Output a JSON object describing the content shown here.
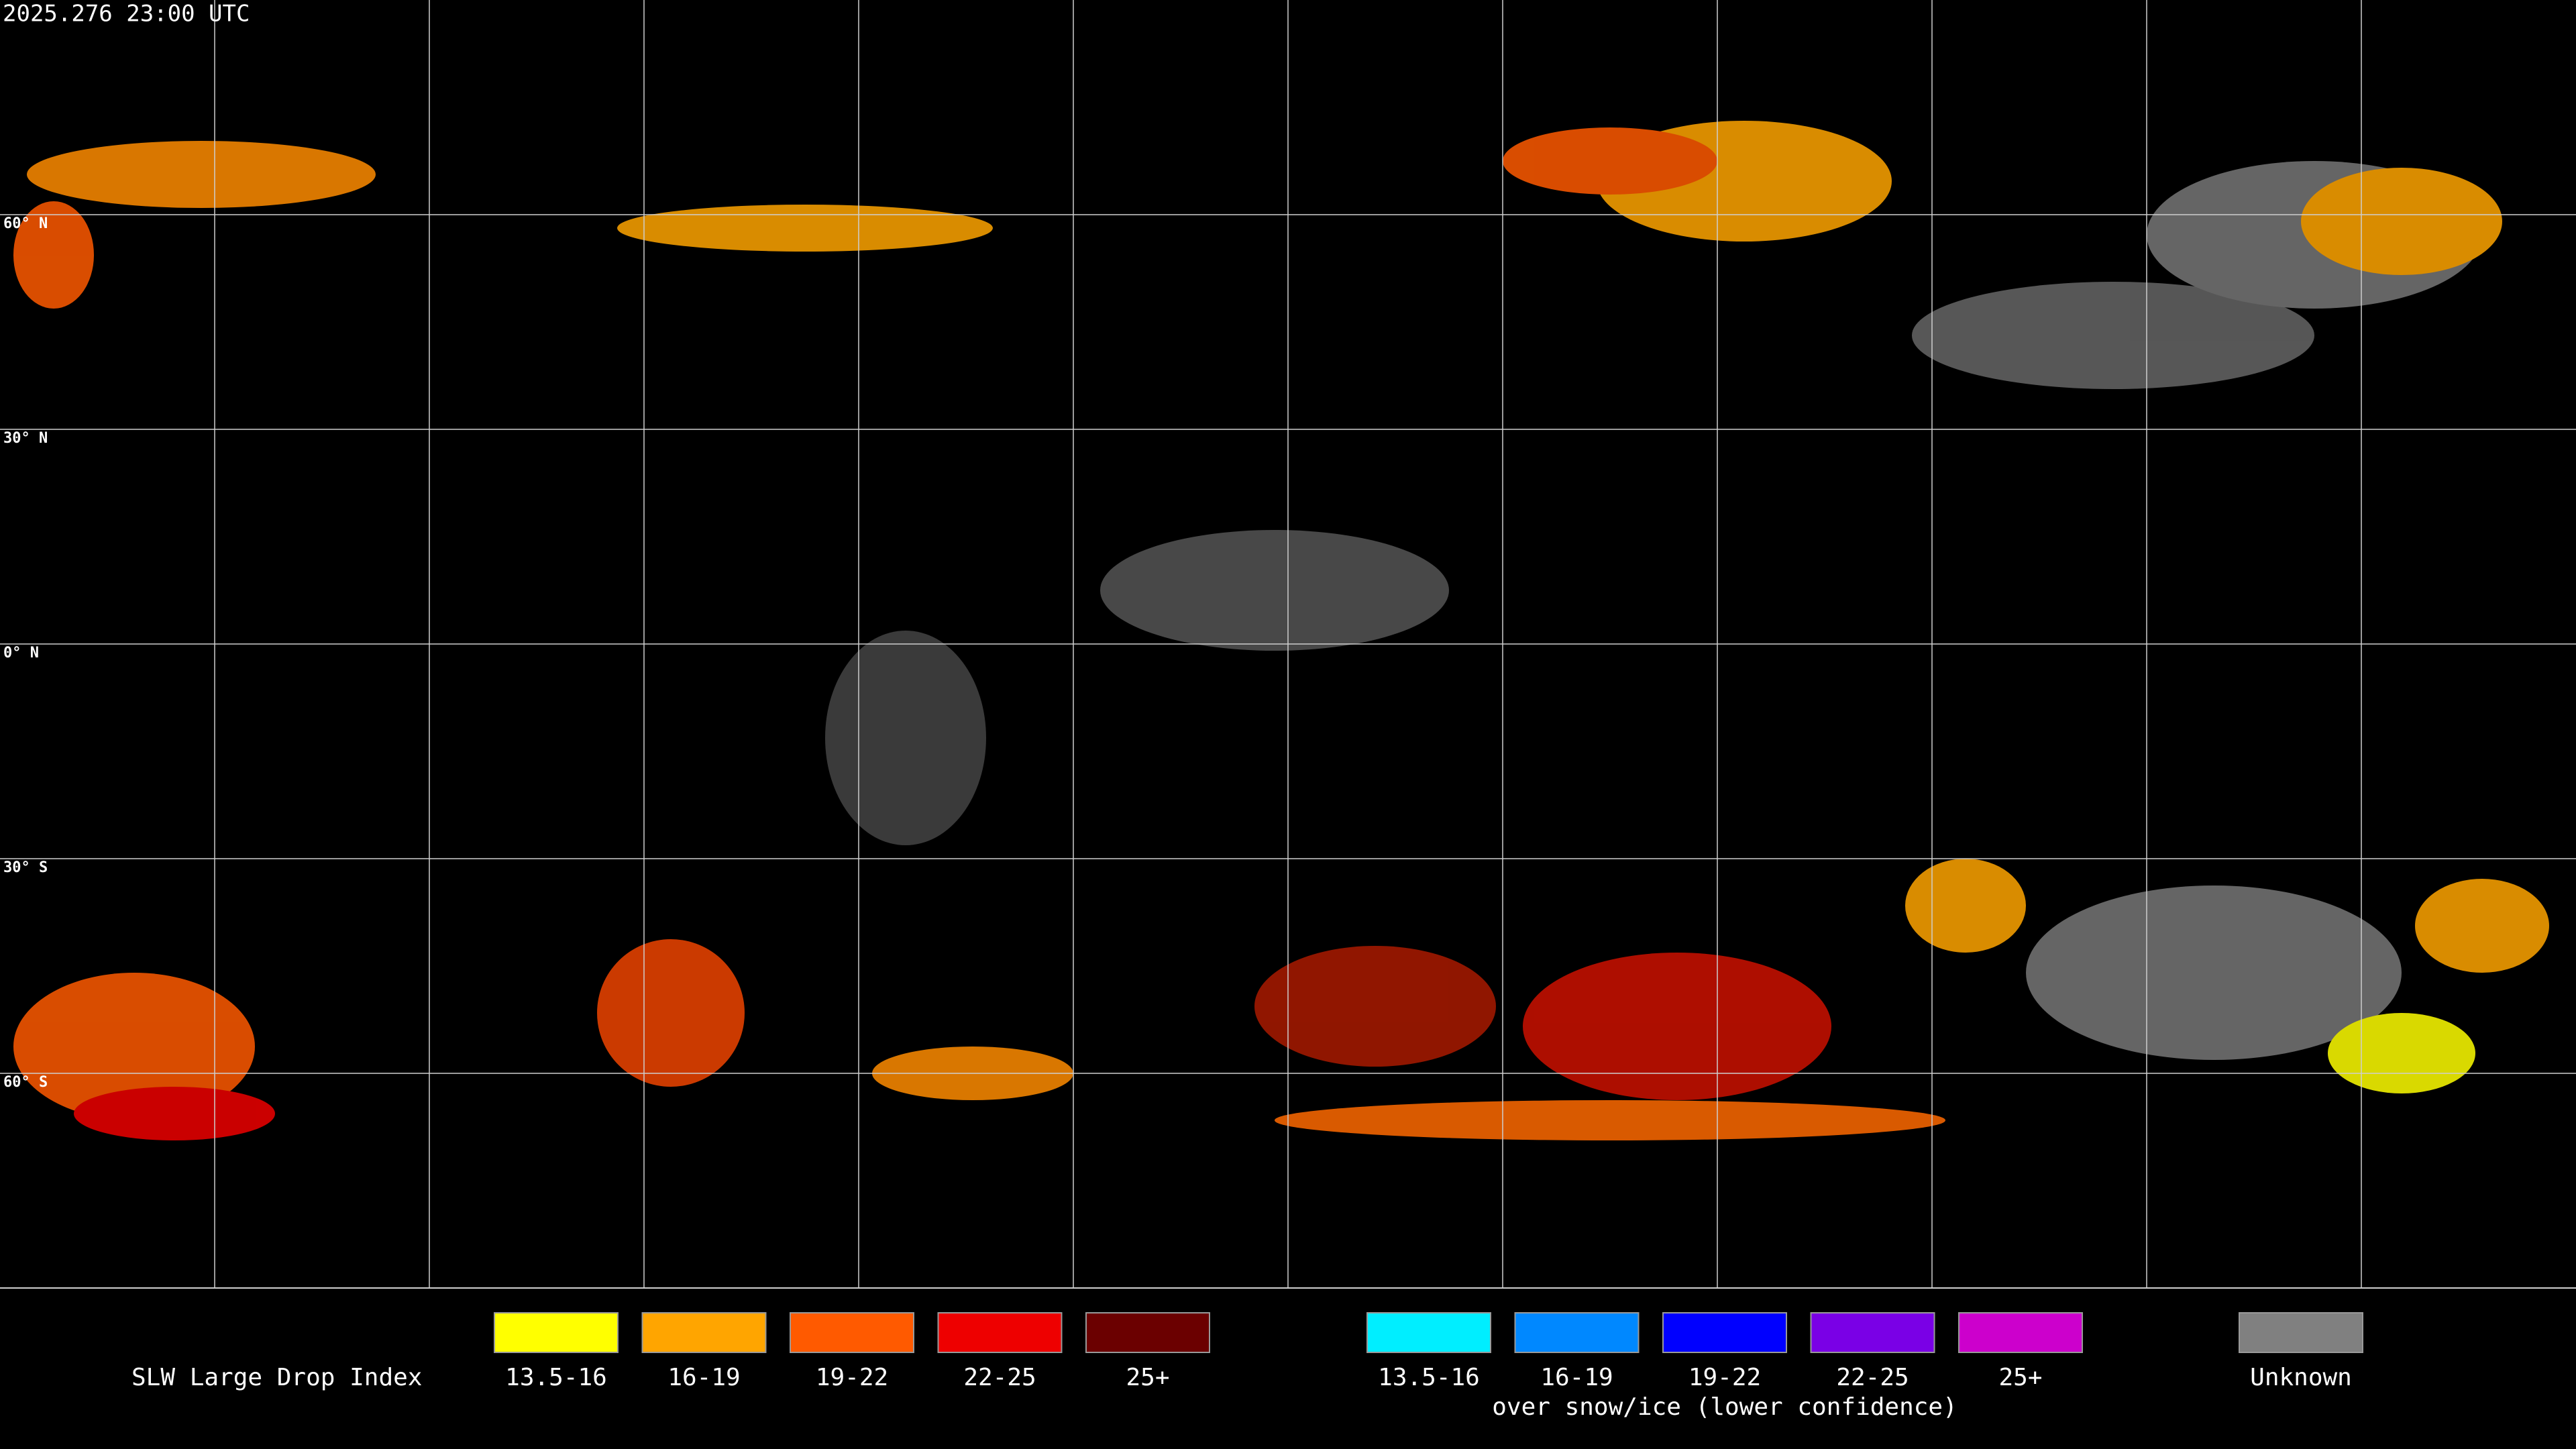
{
  "timestamp": "2025.276 23:00 UTC",
  "map": {
    "latitude_labels": [
      "60° N",
      "30° N",
      "0° N",
      "30° S",
      "60° S"
    ]
  },
  "legend": {
    "title": "SLW Large Drop Index",
    "groups": [
      {
        "items": [
          {
            "label": "13.5-16",
            "color": "#ffff00"
          },
          {
            "label": "16-19",
            "color": "#ffa500"
          },
          {
            "label": "19-22",
            "color": "#ff5a00"
          },
          {
            "label": "22-25",
            "color": "#ee0000"
          },
          {
            "label": "25+",
            "color": "#6b0000"
          }
        ]
      },
      {
        "items": [
          {
            "label": "13.5-16",
            "color": "#00eeff"
          },
          {
            "label": "16-19",
            "color": "#0088ff"
          },
          {
            "label": "19-22",
            "color": "#0000ff"
          },
          {
            "label": "22-25",
            "color": "#7a00e6"
          },
          {
            "label": "25+",
            "color": "#cc00cc"
          }
        ],
        "caption": "over snow/ice (lower confidence)"
      },
      {
        "items": [
          {
            "label": "Unknown",
            "color": "#808080"
          }
        ]
      }
    ]
  }
}
